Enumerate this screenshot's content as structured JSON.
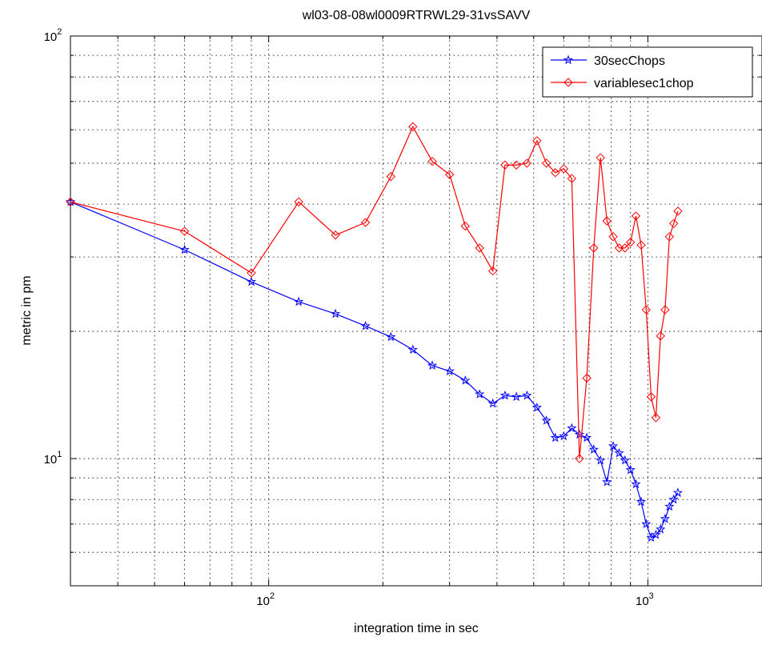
{
  "chart_data": {
    "type": "line",
    "title": "wl03-08-08wl0009RTRWL29-31vsSAVV",
    "xlabel": "integration time in sec",
    "ylabel": "metric in pm",
    "xscale": "log",
    "yscale": "log",
    "xlim": [
      30,
      2000
    ],
    "ylim": [
      5,
      100
    ],
    "grid": true,
    "legend_position": "top-right",
    "x_ticks": [
      {
        "base": "10",
        "exp": "2",
        "value": 100
      },
      {
        "base": "10",
        "exp": "3",
        "value": 1000
      }
    ],
    "y_ticks": [
      {
        "base": "10",
        "exp": "1",
        "value": 10
      },
      {
        "base": "10",
        "exp": "2",
        "value": 100
      }
    ],
    "series": [
      {
        "name": "30secChops",
        "color": "#0000ff",
        "marker": "star",
        "x": [
          30,
          60,
          90,
          120,
          150,
          180,
          210,
          240,
          270,
          300,
          330,
          360,
          390,
          420,
          450,
          480,
          510,
          540,
          570,
          600,
          630,
          660,
          690,
          720,
          750,
          780,
          810,
          840,
          870,
          900,
          930,
          960,
          990,
          1020,
          1050,
          1080,
          1110,
          1140,
          1170,
          1200
        ],
        "values": [
          40.5,
          31.2,
          26.2,
          23.5,
          22.0,
          20.6,
          19.4,
          18.1,
          16.6,
          16.1,
          15.3,
          14.2,
          13.5,
          14.1,
          14.0,
          14.1,
          13.2,
          12.3,
          11.2,
          11.3,
          11.8,
          11.4,
          11.2,
          10.5,
          9.9,
          8.8,
          10.7,
          10.3,
          9.9,
          9.4,
          8.7,
          7.9,
          7.0,
          6.5,
          6.6,
          6.8,
          7.2,
          7.7,
          8.0,
          8.3
        ]
      },
      {
        "name": "variablesec1chop",
        "color": "#ff0000",
        "marker": "diamond",
        "x": [
          30,
          60,
          90,
          120,
          150,
          180,
          210,
          240,
          270,
          300,
          330,
          360,
          390,
          420,
          450,
          480,
          510,
          540,
          570,
          600,
          630,
          660,
          690,
          720,
          750,
          780,
          810,
          840,
          870,
          900,
          930,
          960,
          990,
          1020,
          1050,
          1080,
          1110,
          1140,
          1170,
          1200
        ],
        "values": [
          40.5,
          34.5,
          27.5,
          40.5,
          33.8,
          36.2,
          46.5,
          61.0,
          50.5,
          47.0,
          35.5,
          31.5,
          27.8,
          49.5,
          49.5,
          50.0,
          56.5,
          50.0,
          47.5,
          48.5,
          46.0,
          10.0,
          15.5,
          31.5,
          51.5,
          36.5,
          33.5,
          31.5,
          31.5,
          32.5,
          37.5,
          32.0,
          22.5,
          14.0,
          12.5,
          19.5,
          22.5,
          33.5,
          36.0,
          38.5
        ]
      }
    ]
  }
}
